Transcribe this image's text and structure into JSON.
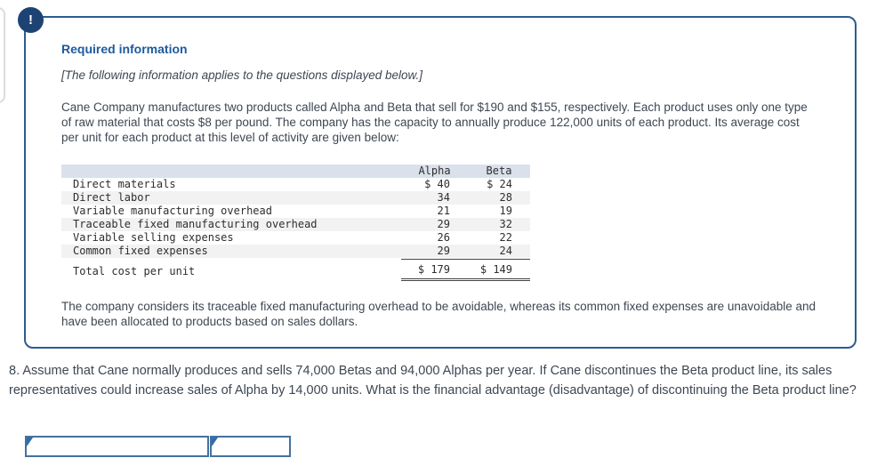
{
  "panel": {
    "alert_icon_glyph": "!",
    "title": "Required information",
    "note": "[The following information applies to the questions displayed below.]",
    "intro": "Cane Company manufactures two products called Alpha and Beta that sell for $190 and $155, respectively. Each product uses only one type of raw material that costs $8 per pound. The company has the capacity to annually produce 122,000 units of each product. Its average cost per unit for each product at this level of activity are given below:",
    "footnote": "The company considers its traceable fixed manufacturing overhead to be avoidable, whereas its common fixed expenses are unavoidable and have been allocated to products based on sales dollars."
  },
  "cost_table": {
    "columns": [
      "Alpha",
      "Beta"
    ],
    "rows": [
      {
        "label": "Direct materials",
        "alpha": "$ 40",
        "beta": "$ 24"
      },
      {
        "label": "Direct labor",
        "alpha": "34",
        "beta": "28"
      },
      {
        "label": "Variable manufacturing overhead",
        "alpha": "21",
        "beta": "19"
      },
      {
        "label": "Traceable fixed manufacturing overhead",
        "alpha": "29",
        "beta": "32"
      },
      {
        "label": "Variable selling expenses",
        "alpha": "26",
        "beta": "22"
      },
      {
        "label": "Common fixed expenses",
        "alpha": "29",
        "beta": "24"
      }
    ],
    "total": {
      "label": "Total cost per unit",
      "alpha": "$ 179",
      "beta": "$ 149"
    }
  },
  "question": {
    "text": "8. Assume that Cane normally produces and sells 74,000 Betas and 94,000 Alphas per year. If Cane discontinues the Beta product line, its sales representatives could increase sales of Alpha by 14,000 units. What is the financial advantage (disadvantage) of discontinuing the Beta product line?"
  },
  "answer": {
    "cells": [
      {
        "value": ""
      },
      {
        "value": ""
      }
    ]
  },
  "colors": {
    "panel_border": "#2e5c8f",
    "alert_badge_bg": "#1d4373",
    "title_blue": "#1c5a9e",
    "table_header_bg": "#dae1ea",
    "table_stripe_bg": "#f2f2f2",
    "answer_border": "#44719e",
    "flag_blue": "#2f6cab"
  }
}
